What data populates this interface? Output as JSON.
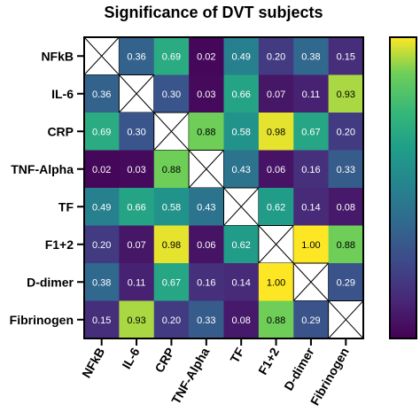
{
  "chart_data": {
    "type": "heatmap",
    "title": "Significance of DVT subjects",
    "row_labels": [
      "NFkB",
      "IL-6",
      "CRP",
      "TNF-Alpha",
      "TF",
      "F1+2",
      "D-dimer",
      "Fibrinogen"
    ],
    "col_labels": [
      "NFkB",
      "IL-6",
      "CRP",
      "TNF-Alpha",
      "TF",
      "F1+2",
      "D-dimer",
      "Fibrinogen"
    ],
    "values": [
      [
        null,
        0.36,
        0.69,
        0.02,
        0.49,
        0.2,
        0.38,
        0.15
      ],
      [
        0.36,
        null,
        0.3,
        0.03,
        0.66,
        0.07,
        0.11,
        0.93
      ],
      [
        0.69,
        0.3,
        null,
        0.88,
        0.58,
        0.98,
        0.67,
        0.2
      ],
      [
        0.02,
        0.03,
        0.88,
        null,
        0.43,
        0.06,
        0.16,
        0.33
      ],
      [
        0.49,
        0.66,
        0.58,
        0.43,
        null,
        0.62,
        0.14,
        0.08
      ],
      [
        0.2,
        0.07,
        0.98,
        0.06,
        0.62,
        null,
        1.0,
        0.88
      ],
      [
        0.38,
        0.11,
        0.67,
        0.16,
        0.14,
        1.0,
        null,
        0.29
      ],
      [
        0.15,
        0.93,
        0.2,
        0.33,
        0.08,
        0.88,
        0.29,
        null
      ]
    ],
    "cell_labels": [
      [
        "",
        "0.36",
        "0.69",
        "0.02",
        "0.49",
        "0.20",
        "0.38",
        "0.15"
      ],
      [
        "0.36",
        "",
        "0.30",
        "0.03",
        "0.66",
        "0.07",
        "0.11",
        "0.93"
      ],
      [
        "0.69",
        "0.30",
        "",
        "0.88",
        "0.58",
        "0.98",
        "0.67",
        "0.20"
      ],
      [
        "0.02",
        "0.03",
        "0.88",
        "",
        "0.43",
        "0.06",
        "0.16",
        "0.33"
      ],
      [
        "0.49",
        "0.66",
        "0.58",
        "0.43",
        "",
        "0.62",
        "0.14",
        "0.08"
      ],
      [
        "0.20",
        "0.07",
        "0.98",
        "0.06",
        "0.62",
        "",
        "1.00",
        "0.88"
      ],
      [
        "0.38",
        "0.11",
        "0.67",
        "0.16",
        "0.14",
        "1.00",
        "",
        "0.29"
      ],
      [
        "0.15",
        "0.93",
        "0.20",
        "0.33",
        "0.08",
        "0.88",
        "0.29",
        ""
      ]
    ],
    "value_range": [
      0,
      1
    ],
    "colormap": "viridis",
    "diagonal": "crossed-out",
    "colorbar": "right"
  }
}
